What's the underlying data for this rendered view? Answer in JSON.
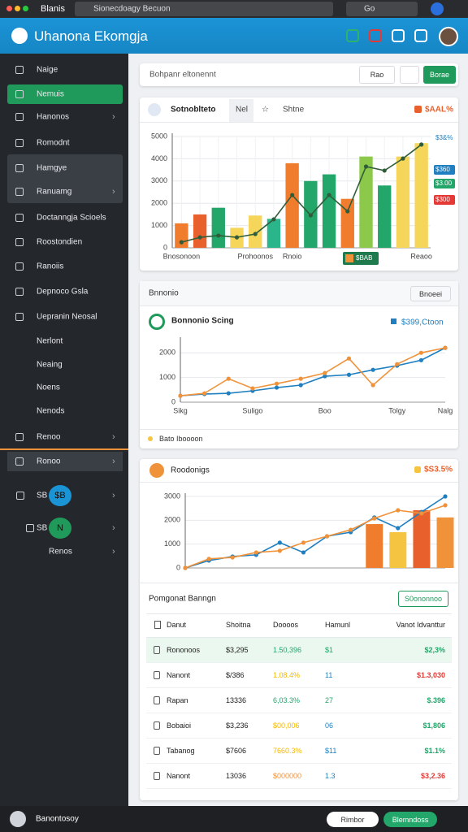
{
  "browser": {
    "title": "Blanis",
    "url": "Sionecdoagy Becuon",
    "search": "Go"
  },
  "header": {
    "title": "Uhanona Ekomgja"
  },
  "sidebar": {
    "items": [
      {
        "label": "Naige"
      },
      {
        "label": "Nemuis"
      },
      {
        "label": "Hanonos"
      },
      {
        "label": "Romodnt"
      },
      {
        "label": "Hamgye"
      },
      {
        "label": "Ranuamg"
      },
      {
        "label": "Doctanngja Scioels"
      },
      {
        "label": "Roostondien"
      },
      {
        "label": "Ranoiis"
      },
      {
        "label": "Depnoco Gsla"
      },
      {
        "label": "Uepranin Neosal"
      },
      {
        "label": "Nerlont"
      },
      {
        "label": "Neaing"
      },
      {
        "label": "Noens"
      },
      {
        "label": "Nenods"
      },
      {
        "label": "Renoo"
      },
      {
        "label": "Ronoo"
      }
    ],
    "extra": [
      {
        "label": "SB",
        "badge": "$B"
      },
      {
        "label": "SB",
        "badge": "N"
      },
      {
        "label": "Renos"
      }
    ]
  },
  "search": {
    "placeholder": "Bohpanr eltonennt",
    "button": "Rao",
    "action": "Borae"
  },
  "chart_data": [
    {
      "type": "bar",
      "title": "Sotnoblteto",
      "tabs": [
        "Nel",
        "Shtne"
      ],
      "badge": "$AAL%",
      "categories": [
        "Bnosonoon",
        null,
        null,
        null,
        "Prohoonos",
        null,
        "Rnoio",
        null,
        null,
        null,
        null,
        null,
        null,
        "Reaoo"
      ],
      "series": [
        {
          "type": "bar",
          "colors": [
            "#f07d2e",
            "#e8612c",
            "#22a66a",
            "#f5d55a",
            "#f5d55a",
            "#2bb58a",
            "#f07d2e",
            "#22a66a",
            "#22a66a",
            "#f07d2e",
            "#8cc94a",
            "#22a66a",
            "#f5d55a",
            "#f5d55a"
          ],
          "values": [
            1100,
            1500,
            1800,
            900,
            1450,
            1300,
            3800,
            3000,
            3300,
            2200,
            4100,
            2800,
            4100,
            4700
          ]
        },
        {
          "type": "line",
          "color": "#2f5d3a",
          "values": [
            250,
            470,
            550,
            470,
            620,
            1280,
            2370,
            1460,
            2370,
            1640,
            3650,
            3470,
            4010,
            4640
          ]
        }
      ],
      "ylim": [
        0,
        5000
      ],
      "yticks": [
        0,
        1000,
        2000,
        3000,
        4000,
        5000
      ],
      "grid": true,
      "side_labels": [
        "$3&%",
        "$360",
        "$3.00",
        "$300"
      ],
      "tag": "$BAB"
    },
    {
      "type": "line",
      "header": "Bnnonio",
      "button": "Bnoeei",
      "title": "Bonnonio Scing",
      "value_label": "$399,Ctoon",
      "footer": "Bato Iboooon",
      "categories": [
        "Sikg",
        null,
        null,
        "Suligo",
        null,
        null,
        "Boo",
        null,
        null,
        "Tolgy",
        null,
        "Nalg"
      ],
      "series": [
        {
          "type": "line",
          "color": "#1f7fc1",
          "values": [
            260,
            330,
            360,
            460,
            590,
            690,
            1050,
            1110,
            1310,
            1480,
            1700,
            2200
          ]
        },
        {
          "type": "line",
          "color": "#f0923a",
          "values": [
            260,
            360,
            950,
            560,
            750,
            950,
            1180,
            1770,
            690,
            1540,
            2000,
            2200
          ]
        }
      ],
      "ylim": [
        0,
        2500
      ],
      "yticks": [
        0,
        1000,
        2000
      ],
      "grid": true
    },
    {
      "type": "line",
      "title": "Roodonigs",
      "badge": "$S3.5%",
      "categories": [
        null,
        null,
        null,
        null,
        null,
        null,
        null,
        null,
        null,
        null,
        null,
        null
      ],
      "series": [
        {
          "type": "bar",
          "colors": [
            null,
            null,
            null,
            null,
            null,
            null,
            null,
            null,
            "#f07d2e",
            "#f5c542",
            "#e8612c",
            "#f0923a"
          ],
          "values": [
            null,
            null,
            null,
            null,
            null,
            null,
            null,
            null,
            1840,
            1500,
            2420,
            2120
          ]
        },
        {
          "type": "line",
          "color": "#1f7fc1",
          "values": [
            0,
            310,
            480,
            550,
            1060,
            650,
            1330,
            1500,
            2120,
            1670,
            2350,
            3000
          ]
        },
        {
          "type": "line",
          "color": "#f0923a",
          "values": [
            0,
            380,
            440,
            650,
            720,
            1060,
            1330,
            1600,
            2080,
            2420,
            2290,
            2630
          ]
        }
      ],
      "ylim": [
        0,
        3000
      ],
      "yticks": [
        0,
        1000,
        2000,
        3000
      ],
      "grid": true
    }
  ],
  "table": {
    "title": "Pomgonat Banngn",
    "button": "S0ononnoo",
    "columns": [
      "Danut",
      "Shoitna",
      "Doooos",
      "Hamunl",
      "Vanot Idvanttur"
    ],
    "rows": [
      [
        "Rononoos",
        "$3,295",
        "1.50,396",
        "$1",
        "$2,3%"
      ],
      [
        "Nanont",
        "$/386",
        "1.08.4%",
        "11",
        "$1.3,030"
      ],
      [
        "Rapan",
        "13336",
        "6,03.3%",
        "27",
        "$.396"
      ],
      [
        "Bobaioi",
        "$3,236",
        "$00,006",
        "06",
        "$1,806"
      ],
      [
        "Tabanog",
        "$7606",
        "7660.3%",
        "$11",
        "$1.1%"
      ],
      [
        "Nanont",
        "13036",
        "$000000",
        "1.3",
        "$3,2.36"
      ]
    ]
  },
  "footer": {
    "user": "Banontosoy",
    "button": "Rimbor",
    "action": "Blemndoss"
  }
}
